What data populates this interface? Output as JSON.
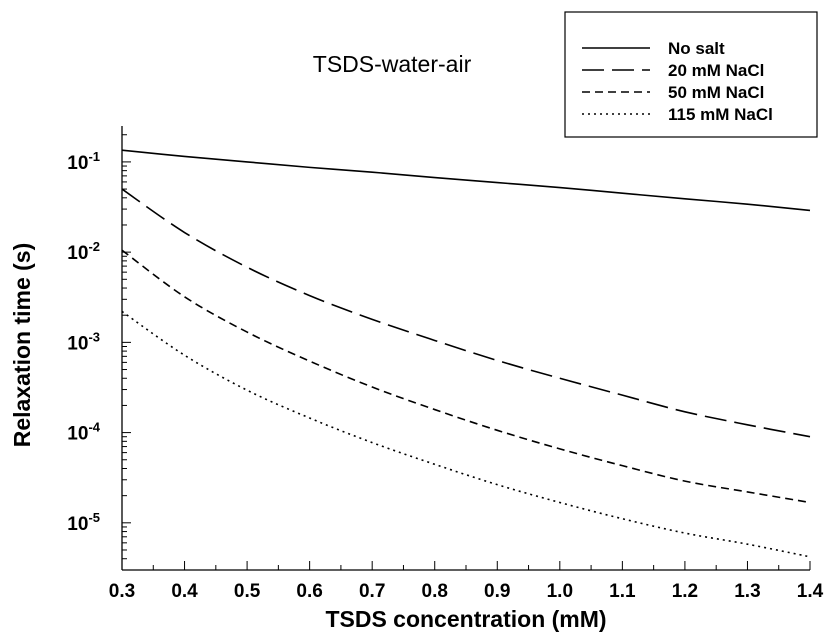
{
  "chart_data": {
    "type": "line",
    "title": "TSDS-water-air",
    "xlabel": "TSDS concentration (mM)",
    "ylabel": "Relaxation time (s)",
    "xlim": [
      0.3,
      1.4
    ],
    "ylim": [
      3e-06,
      0.25
    ],
    "yscale": "log",
    "grid": false,
    "legend_position": "top-right",
    "x_ticks": [
      "0.3",
      "0.4",
      "0.5",
      "0.6",
      "0.7",
      "0.8",
      "0.9",
      "1.0",
      "1.1",
      "1.2",
      "1.3",
      "1.4"
    ],
    "y_ticks": [
      {
        "value": 0.1,
        "base": "10",
        "exp": "-1"
      },
      {
        "value": 0.01,
        "base": "10",
        "exp": "-2"
      },
      {
        "value": 0.001,
        "base": "10",
        "exp": "-3"
      },
      {
        "value": 0.0001,
        "base": "10",
        "exp": "-4"
      },
      {
        "value": 1e-05,
        "base": "10",
        "exp": "-5"
      }
    ],
    "x": [
      0.3,
      0.4,
      0.5,
      0.6,
      0.7,
      0.8,
      0.9,
      1.0,
      1.1,
      1.2,
      1.3,
      1.4
    ],
    "series": [
      {
        "name": "No salt",
        "dash": "solid",
        "values": [
          0.135,
          0.115,
          0.1,
          0.087,
          0.077,
          0.067,
          0.059,
          0.052,
          0.045,
          0.039,
          0.034,
          0.029
        ]
      },
      {
        "name": "20 mM NaCl",
        "dash": "long-dash",
        "values": [
          0.05,
          0.0165,
          0.0068,
          0.0033,
          0.0018,
          0.00105,
          0.00063,
          0.0004,
          0.00026,
          0.00017,
          0.000122,
          9e-05
        ]
      },
      {
        "name": "50 mM NaCl",
        "dash": "dash",
        "values": [
          0.0105,
          0.0032,
          0.0013,
          0.00062,
          0.00032,
          0.00018,
          0.000106,
          6.6e-05,
          4.3e-05,
          2.9e-05,
          2.2e-05,
          1.68e-05
        ]
      },
      {
        "name": "115 mM NaCl",
        "dash": "dot",
        "values": [
          0.0022,
          0.00072,
          0.000295,
          0.000145,
          7.75e-05,
          4.45e-05,
          2.65e-05,
          1.68e-05,
          1.11e-05,
          7.7e-06,
          5.8e-06,
          4.2e-06
        ]
      }
    ]
  }
}
